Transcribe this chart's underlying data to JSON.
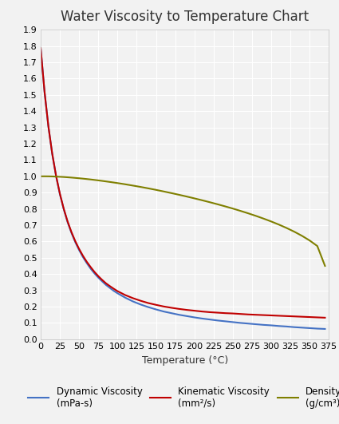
{
  "title": "Water Viscosity to Temperature Chart",
  "xlabel": "Temperature (°C)",
  "xlim": [
    0,
    375
  ],
  "ylim": [
    0.0,
    1.9
  ],
  "xticks": [
    0,
    25,
    50,
    75,
    100,
    125,
    150,
    175,
    200,
    225,
    250,
    275,
    300,
    325,
    350,
    375
  ],
  "yticks": [
    0.0,
    0.1,
    0.2,
    0.3,
    0.4,
    0.5,
    0.6,
    0.7,
    0.8,
    0.9,
    1.0,
    1.1,
    1.2,
    1.3,
    1.4,
    1.5,
    1.6,
    1.7,
    1.8,
    1.9
  ],
  "temperature": [
    0,
    5,
    10,
    15,
    20,
    25,
    30,
    35,
    40,
    45,
    50,
    55,
    60,
    65,
    70,
    75,
    80,
    85,
    90,
    95,
    100,
    110,
    120,
    130,
    140,
    150,
    160,
    170,
    180,
    190,
    200,
    210,
    220,
    230,
    240,
    250,
    260,
    270,
    280,
    290,
    300,
    310,
    320,
    330,
    340,
    350,
    360,
    370
  ],
  "dynamic_viscosity": [
    1.787,
    1.519,
    1.307,
    1.138,
    1.002,
    0.89,
    0.798,
    0.719,
    0.653,
    0.596,
    0.547,
    0.504,
    0.467,
    0.433,
    0.404,
    0.378,
    0.355,
    0.333,
    0.315,
    0.297,
    0.282,
    0.255,
    0.232,
    0.213,
    0.197,
    0.183,
    0.17,
    0.16,
    0.15,
    0.142,
    0.134,
    0.127,
    0.121,
    0.115,
    0.11,
    0.105,
    0.1,
    0.096,
    0.092,
    0.088,
    0.085,
    0.081,
    0.078,
    0.074,
    0.071,
    0.068,
    0.065,
    0.063
  ],
  "kinematic_viscosity": [
    1.787,
    1.52,
    1.308,
    1.14,
    1.004,
    0.893,
    0.801,
    0.723,
    0.658,
    0.602,
    0.554,
    0.512,
    0.475,
    0.443,
    0.413,
    0.387,
    0.364,
    0.343,
    0.326,
    0.31,
    0.295,
    0.271,
    0.252,
    0.236,
    0.222,
    0.211,
    0.201,
    0.193,
    0.186,
    0.18,
    0.175,
    0.17,
    0.166,
    0.163,
    0.16,
    0.158,
    0.155,
    0.152,
    0.15,
    0.148,
    0.146,
    0.144,
    0.142,
    0.14,
    0.138,
    0.136,
    0.134,
    0.132
  ],
  "density": [
    0.9998,
    0.9999,
    0.9997,
    0.9991,
    0.9982,
    0.997,
    0.9957,
    0.994,
    0.9922,
    0.9902,
    0.988,
    0.9857,
    0.9832,
    0.9806,
    0.9778,
    0.9748,
    0.9718,
    0.9686,
    0.9653,
    0.9619,
    0.9584,
    0.951,
    0.943,
    0.9348,
    0.926,
    0.9168,
    0.907,
    0.897,
    0.8866,
    0.8758,
    0.8646,
    0.853,
    0.841,
    0.8285,
    0.8155,
    0.802,
    0.7877,
    0.7728,
    0.7571,
    0.7404,
    0.7226,
    0.7035,
    0.6827,
    0.66,
    0.6347,
    0.606,
    0.572,
    0.45
  ],
  "dynamic_color": "#4472c4",
  "kinematic_color": "#c00000",
  "density_color": "#7f7f00",
  "dynamic_label": "Dynamic Viscosity\n(mPa-s)",
  "kinematic_label": "Kinematic Viscosity\n(mm²/s)",
  "density_label": "Density\n(g/cm³)",
  "background_color": "#f2f2f2",
  "plot_bg_color": "#f2f2f2",
  "grid_color": "#ffffff",
  "title_fontsize": 12,
  "axis_label_fontsize": 9,
  "tick_fontsize": 8,
  "legend_fontsize": 8.5
}
